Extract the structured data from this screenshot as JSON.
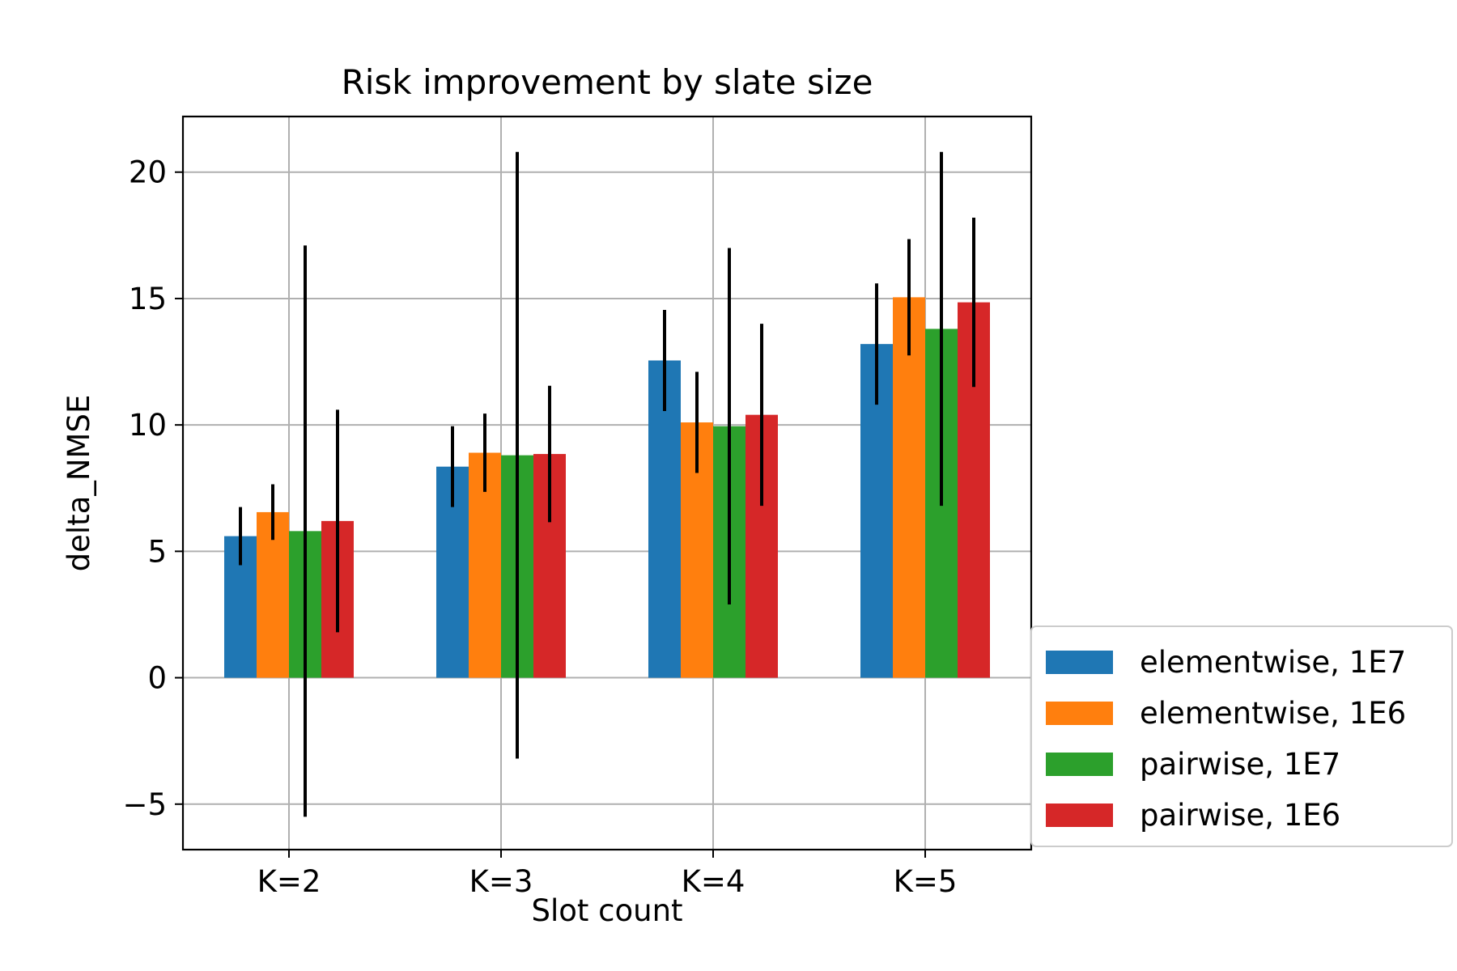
{
  "chart_data": {
    "type": "bar",
    "title": "Risk improvement by slate size",
    "xlabel": "Slot count",
    "ylabel": "delta_NMSE",
    "categories": [
      "K=2",
      "K=3",
      "K=4",
      "K=5"
    ],
    "ylim": [
      -6.8,
      22.2
    ],
    "yticks": [
      -5,
      0,
      5,
      10,
      15,
      20
    ],
    "ytick_labels": [
      "−5",
      "0",
      "5",
      "10",
      "15",
      "20"
    ],
    "grid": true,
    "legend_position": "outside lower-right",
    "series": [
      {
        "name": "elementwise, 1E7",
        "color": "#1f77b4",
        "values": [
          5.6,
          8.35,
          12.55,
          13.2
        ],
        "errors": [
          1.15,
          1.6,
          2.0,
          2.4
        ]
      },
      {
        "name": "elementwise, 1E6",
        "color": "#ff7f0e",
        "values": [
          6.55,
          8.9,
          10.1,
          15.05
        ],
        "errors": [
          1.1,
          1.55,
          2.0,
          2.3
        ]
      },
      {
        "name": "pairwise, 1E7",
        "color": "#2ca02c",
        "values": [
          5.8,
          8.8,
          9.95,
          13.8
        ],
        "errors": [
          11.3,
          12.0,
          7.05,
          7.0
        ]
      },
      {
        "name": "pairwise, 1E6",
        "color": "#d62728",
        "values": [
          6.2,
          8.85,
          10.4,
          14.85
        ],
        "errors": [
          4.4,
          2.7,
          3.6,
          3.35
        ]
      }
    ]
  }
}
